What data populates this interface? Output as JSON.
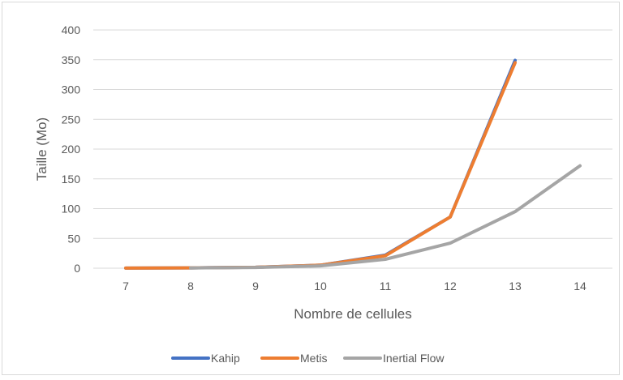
{
  "chart_data": {
    "type": "line",
    "title": "",
    "xlabel": "Nombre de cellules",
    "ylabel": "Taille (Mo)",
    "categories": [
      "7",
      "8",
      "9",
      "10",
      "11",
      "12",
      "13",
      "14"
    ],
    "ylim": [
      0,
      400
    ],
    "yticks": [
      0,
      50,
      100,
      150,
      200,
      250,
      300,
      350,
      400
    ],
    "grid": true,
    "legend_position": "bottom",
    "series": [
      {
        "name": "Kahip",
        "color": "#4472C4",
        "values": [
          0.2,
          0.5,
          1.5,
          5,
          22,
          86,
          349,
          null
        ]
      },
      {
        "name": "Metis",
        "color": "#ED7D31",
        "values": [
          0.2,
          0.5,
          1.5,
          5,
          21,
          86,
          345,
          null
        ]
      },
      {
        "name": "Inertial Flow",
        "color": "#A5A5A5",
        "values": [
          null,
          0.4,
          1.2,
          4,
          15,
          42,
          95,
          172
        ]
      }
    ]
  }
}
